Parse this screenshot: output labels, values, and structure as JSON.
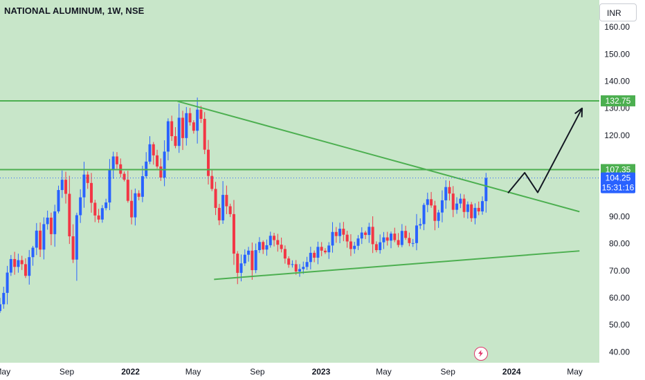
{
  "header": {
    "title": "NATIONAL ALUMINUM, 1W, NSE",
    "currency": "INR"
  },
  "icons": {
    "alert": "lightning-icon"
  },
  "colors": {
    "background": "#c8e6c9",
    "axis_background": "#ffffff",
    "up": "#2962ff",
    "down": "#f23645",
    "trendline": "#4caf50",
    "level_label": "#4caf50",
    "price_label": "#2962ff",
    "arrow": "#131722"
  },
  "chart_data": {
    "type": "candlestick",
    "title": "NATIONAL ALUMINUM, 1W, NSE",
    "ylim": [
      36,
      170
    ],
    "yticks": [
      40,
      50,
      60,
      70,
      80,
      90,
      100,
      110,
      120,
      130,
      140,
      150,
      160
    ],
    "ytick_labels": [
      "40.00",
      "50.00",
      "60.00",
      "70.00",
      "80.00",
      "90.00",
      "",
      "",
      "120.00",
      "130.00",
      "140.00",
      "150.00",
      "160.00"
    ],
    "x_range": [
      "2021-04-26",
      "2024-06-17"
    ],
    "xticks": [
      {
        "label": "May",
        "date": "2021-05-01"
      },
      {
        "label": "Sep",
        "date": "2021-09-01"
      },
      {
        "label": "2022",
        "date": "2022-01-01"
      },
      {
        "label": "May",
        "date": "2022-05-01"
      },
      {
        "label": "Sep",
        "date": "2022-09-01"
      },
      {
        "label": "2023",
        "date": "2023-01-01"
      },
      {
        "label": "May",
        "date": "2023-05-01"
      },
      {
        "label": "Sep",
        "date": "2023-09-01"
      },
      {
        "label": "2024",
        "date": "2024-01-01"
      },
      {
        "label": "May",
        "date": "2024-05-01"
      }
    ],
    "grid": false,
    "series": [
      {
        "closes": [
          57.6,
          61.8,
          69.3,
          74.3,
          71.4,
          73.9,
          72.4,
          68.1,
          75,
          78.5,
          84.8,
          77.8,
          87.2,
          89.6,
          83.5,
          91.9,
          99.8,
          103.6,
          98.4,
          82.7,
          74.1,
          90.5,
          97.1,
          105.5,
          102.4,
          95.1,
          90.4,
          88.9,
          93.1,
          95.2,
          107.4,
          112.2,
          109.3,
          105.8,
          103.6,
          95.8,
          89.7,
          98.6,
          97.3,
          104.9,
          110.3,
          116.7,
          112.6,
          108.5,
          104.4,
          114,
          125.2,
          119.7,
          116.1,
          126.5,
          119,
          128.2,
          124.8,
          121.7,
          129.5,
          126.1,
          114.7,
          105,
          100.2,
          93.2,
          88.6,
          98,
          93.8,
          90.9,
          76.3,
          69.2,
          72.7,
          75.9,
          77.4,
          70.2,
          77.6,
          80.6,
          77.8,
          79.4,
          82.9,
          81.3,
          79.6,
          78,
          74.5,
          72.2,
          72.4,
          69.7,
          70.6,
          71.4,
          73.2,
          76.6,
          74.8,
          78.8,
          77.4,
          76.8,
          79.3,
          84.3,
          82.8,
          85.5,
          83.3,
          80.8,
          78,
          79.2,
          81.9,
          84.1,
          83.2,
          86.2,
          79.8,
          77.6,
          80.5,
          82.3,
          81.1,
          83.7,
          81.3,
          79.5,
          84.7,
          82.1,
          80.2,
          80.2,
          86.7,
          87.2,
          94.3,
          96.4,
          94.1,
          88.4,
          91.5,
          96,
          100.9,
          98.5,
          92.5,
          94.8,
          96.6,
          91.7,
          94.5,
          89.4,
          93.2,
          91.9,
          95.7,
          104.25
        ],
        "labels_on_axis": {
          "last": "104.25",
          "countdown": "15:31:16"
        }
      }
    ],
    "levels": [
      {
        "value": 132.75,
        "label": "132.75"
      },
      {
        "value": 107.35,
        "label": "107.35"
      }
    ],
    "trendlines": [
      {
        "from": {
          "date": "2022-04-01",
          "price": 132.6
        },
        "to": {
          "date": "2024-05-10",
          "price": 91.8
        }
      },
      {
        "from": {
          "date": "2022-06-10",
          "price": 66.8
        },
        "to": {
          "date": "2024-05-10",
          "price": 77.3
        }
      }
    ],
    "projection": [
      {
        "date": "2023-12-25",
        "price": 98.7
      },
      {
        "date": "2024-01-26",
        "price": 106.2
      },
      {
        "date": "2024-02-20",
        "price": 98.9
      },
      {
        "date": "2024-05-15",
        "price": 130
      }
    ],
    "last_price_line": 104.25
  }
}
